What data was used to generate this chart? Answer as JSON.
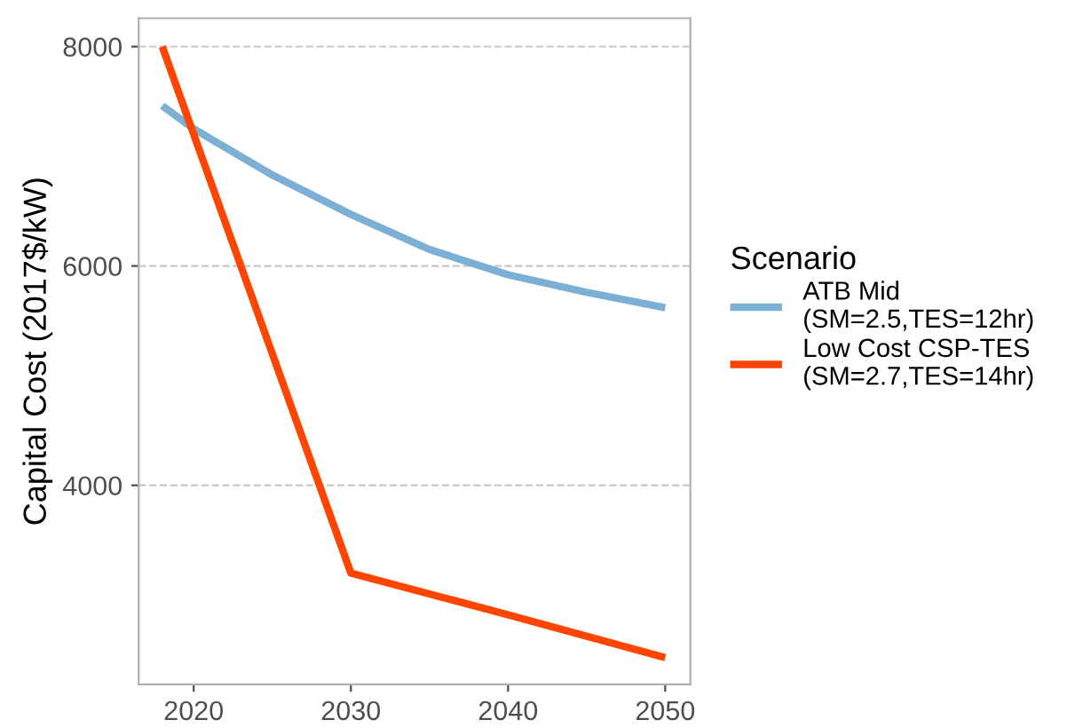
{
  "chart_data": {
    "type": "line",
    "ylabel": "Capital Cost (2017$/kW)",
    "legend_title": "Scenario",
    "legend": "right",
    "xlim": [
      2016.5,
      2051.6
    ],
    "xticks": [
      2020,
      2030,
      2040,
      2050
    ],
    "ylim": [
      2186,
      8259
    ],
    "yticks": [
      4000,
      6000,
      8000
    ],
    "grid": "y",
    "series": [
      {
        "name": "ATB Mid\n(SM=2.5,TES=12hr)",
        "color": "#7bafd4",
        "x": [
          2018,
          2020,
          2025,
          2030,
          2035,
          2040,
          2045,
          2050
        ],
        "values": [
          7460,
          7250,
          6830,
          6470,
          6150,
          5920,
          5760,
          5620
        ]
      },
      {
        "name": "Low Cost CSP-TES\n(SM=2.7,TES=14hr)",
        "color": "#ff4500",
        "x": [
          2018,
          2030,
          2040,
          2050
        ],
        "values": [
          8000,
          3200,
          2820,
          2430
        ]
      }
    ]
  }
}
